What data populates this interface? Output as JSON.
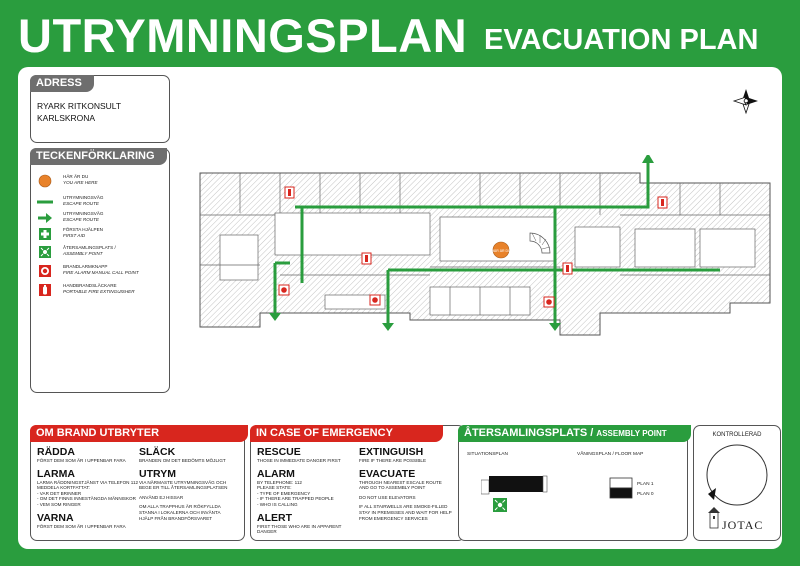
{
  "header": {
    "title_sv": "UTRYMNINGSPLAN",
    "title_en": "EVACUATION PLAN"
  },
  "adress": {
    "title": "ADRESS",
    "line1": "RYARK RITKONSULT",
    "line2": "KARLSKRONA"
  },
  "legend": {
    "title": "TECKENFÖRKLARING",
    "items": [
      {
        "sv": "HÄR ÄR DU",
        "en": "YOU ARE HERE",
        "icon": "you-are-here-icon"
      },
      {
        "sv": "UTRYMNINGSVÄG",
        "en": "ESCAPE ROUTE",
        "icon": "escape-route-line-icon"
      },
      {
        "sv": "UTRYMNINGSVÄG",
        "en": "ESCAPE ROUTE",
        "icon": "escape-route-arrow-icon"
      },
      {
        "sv": "FÖRSTA HJÄLPEN",
        "en": "FIRST AID",
        "icon": "first-aid-icon"
      },
      {
        "sv": "ÅTERSAMLINGSPLATS /",
        "en": "ASSEMBLY POINT",
        "icon": "assembly-point-icon"
      },
      {
        "sv": "BRANDLARMKNAPP",
        "en": "FIRE ALARM MANUAL CALL POINT",
        "icon": "fire-alarm-icon"
      },
      {
        "sv": "HANDBRANDSLÄCKARE",
        "en": "PORTABLE FIRE EXTINGUISHER",
        "icon": "fire-extinguisher-icon"
      }
    ]
  },
  "map": {
    "marker_label": "HÄR ÄR DU",
    "colors": {
      "route": "#2a9d3e",
      "marker": "#e8822a",
      "alarm": "#d8261e"
    }
  },
  "brand": {
    "title": "OM BRAND UTBRYTER",
    "col1": [
      {
        "heading": "RÄDDA",
        "text": "FÖRST DEM SOM ÄR I UPPENBAR FARA"
      },
      {
        "heading": "LARMA",
        "text": "LARMA RÄDDNINGSTJÄNST VIA TELEFON 112\nMEDDELA KORTFATTAT:\n- VAR DET BRINNER\n- OM DET FINNS INNESTÄNGDA MÄNNISKOR\n- VEM SOM RINGER"
      },
      {
        "heading": "VARNA",
        "text": "FÖRST DEM SOM ÄR I UPPENBAR FARA"
      }
    ],
    "col2": [
      {
        "heading": "SLÄCK",
        "text": "BRANDEN OM DET BEDÖMTS MÖJLIGT"
      },
      {
        "heading": "UTRYM",
        "text": "VIA NÄRMASTE UTRYMNINGSVÄG OCH\nBEGE ER TILL ÅTERSAMLINGSPLATSEN"
      },
      {
        "heading": "",
        "text": "ANVÄND EJ HISSAR"
      },
      {
        "heading": "",
        "text": "OM ALLA TRAPPHUS ÄR RÖKFYLLDA\nSTANNA I LOKALERNA OCH INVÄNTA\nHJÄLP FRÅN BRANDFÖRSVARET"
      }
    ]
  },
  "emergency": {
    "title": "IN CASE OF EMERGENCY",
    "col1": [
      {
        "heading": "RESCUE",
        "text": "THOSE IN IMMEDIATE DANGER FIRST"
      },
      {
        "heading": "ALARM",
        "text": "BY TELEPHONE: 112\nPLEASE STATE:\n- TYPE OF EMERGENCY\n- IF THERE ARE TRAPPED PEOPLE\n- WHO IS CALLING"
      },
      {
        "heading": "ALERT",
        "text": "FIRST THOSE WHO ARE IN APPARENT\nDANGER"
      }
    ],
    "col2": [
      {
        "heading": "EXTINGUISH",
        "text": "FIRE IF THERE ARE POSSIBLE"
      },
      {
        "heading": "EVACUATE",
        "text": "THROUGH NEAREST ESCALE ROUTE\nAND GO TO ASSEMBLY POINT"
      },
      {
        "heading": "",
        "text": "DO NOT USE ELEVATORS"
      },
      {
        "heading": "",
        "text": "IF ALL STAIRWELLS ARE SMOKE-FILLED\nSTAY IN PREMISSES AND WAIT FOR HELP\nFROM EMERGENCY SERVICES"
      }
    ]
  },
  "assembly": {
    "title_sv": "ÅTERSAMLINGSPLATS /",
    "title_en": "ASSEMBLY POINT",
    "situation_label": "SITUATIONSPLAN",
    "floor_label": "VÅNINGSPLAN / FLOOR MAP",
    "plan1": "PLAN 1",
    "plan0": "PLAN 0"
  },
  "kontroll": {
    "label": "KONTROLLERAD",
    "brand": "JOTAC"
  }
}
